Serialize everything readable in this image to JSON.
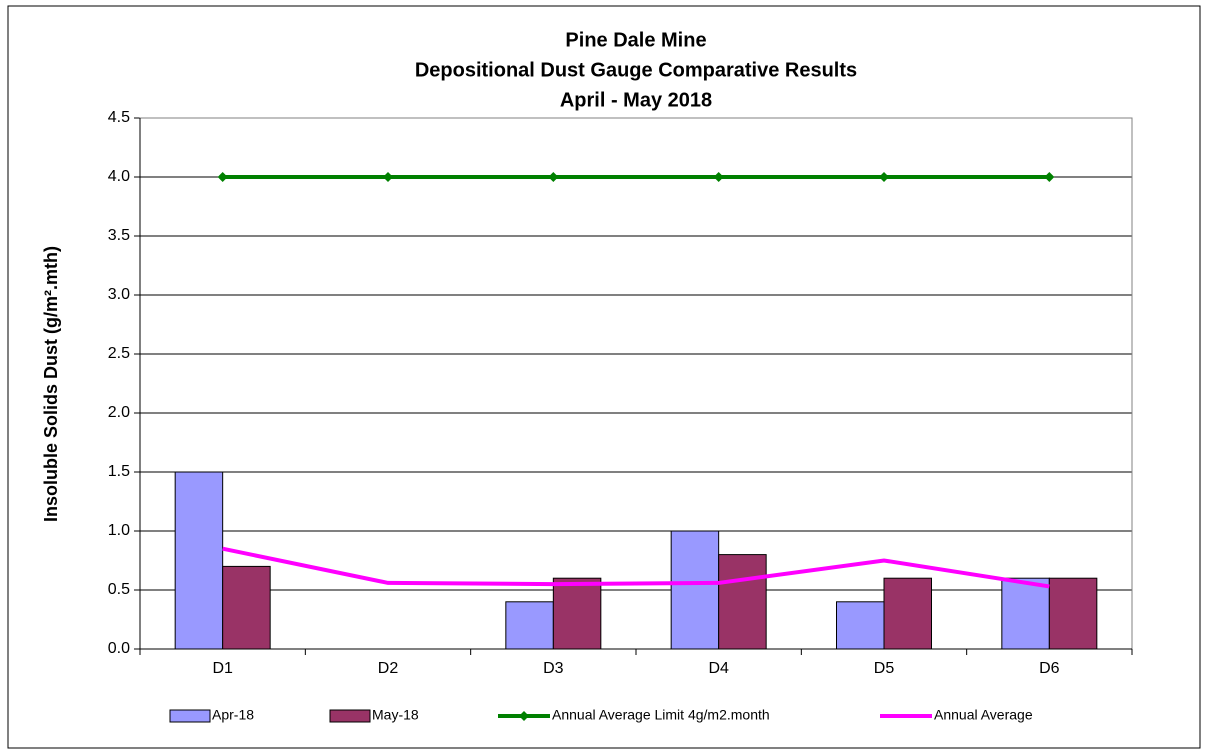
{
  "chart_data": {
    "type": "bar",
    "title": [
      "Pine Dale Mine",
      "Depositional Dust Gauge Comparative  Results",
      "April - May 2018"
    ],
    "y_label": "Insoluble Solids Dust (g/m².mth)",
    "categories": [
      "D1",
      "D2",
      "D3",
      "D4",
      "D5",
      "D6"
    ],
    "series": [
      {
        "name": "Apr-18",
        "type": "bar",
        "color": "#9999ff",
        "values": [
          1.5,
          null,
          0.4,
          1.0,
          0.4,
          0.6
        ]
      },
      {
        "name": "May-18",
        "type": "bar",
        "color": "#993366",
        "values": [
          0.7,
          null,
          0.6,
          0.8,
          0.6,
          0.6
        ]
      },
      {
        "name": "Annual Average Limit 4g/m2.month",
        "type": "line",
        "marker": "diamond",
        "color": "#008000",
        "values": [
          4,
          4,
          4,
          4,
          4,
          4
        ]
      },
      {
        "name": "Annual Average",
        "type": "line",
        "color": "#ff00ff",
        "values": [
          0.85,
          0.56,
          0.55,
          0.56,
          0.75,
          0.53
        ]
      }
    ],
    "ylim": [
      0,
      4.5
    ],
    "yticks": [
      {
        "value": 0,
        "label": "0.0"
      },
      {
        "value": 0.5,
        "label": "0.5"
      },
      {
        "value": 1,
        "label": "1.0"
      },
      {
        "value": 1.5,
        "label": "1.5"
      },
      {
        "value": 2,
        "label": "2.0"
      },
      {
        "value": 2.5,
        "label": "2.5"
      },
      {
        "value": 3,
        "label": "3.0"
      },
      {
        "value": 3.5,
        "label": "3.5"
      },
      {
        "value": 4,
        "label": "4.0"
      },
      {
        "value": 4.5,
        "label": "4.5"
      }
    ],
    "grid": true,
    "legend": "bottom"
  }
}
